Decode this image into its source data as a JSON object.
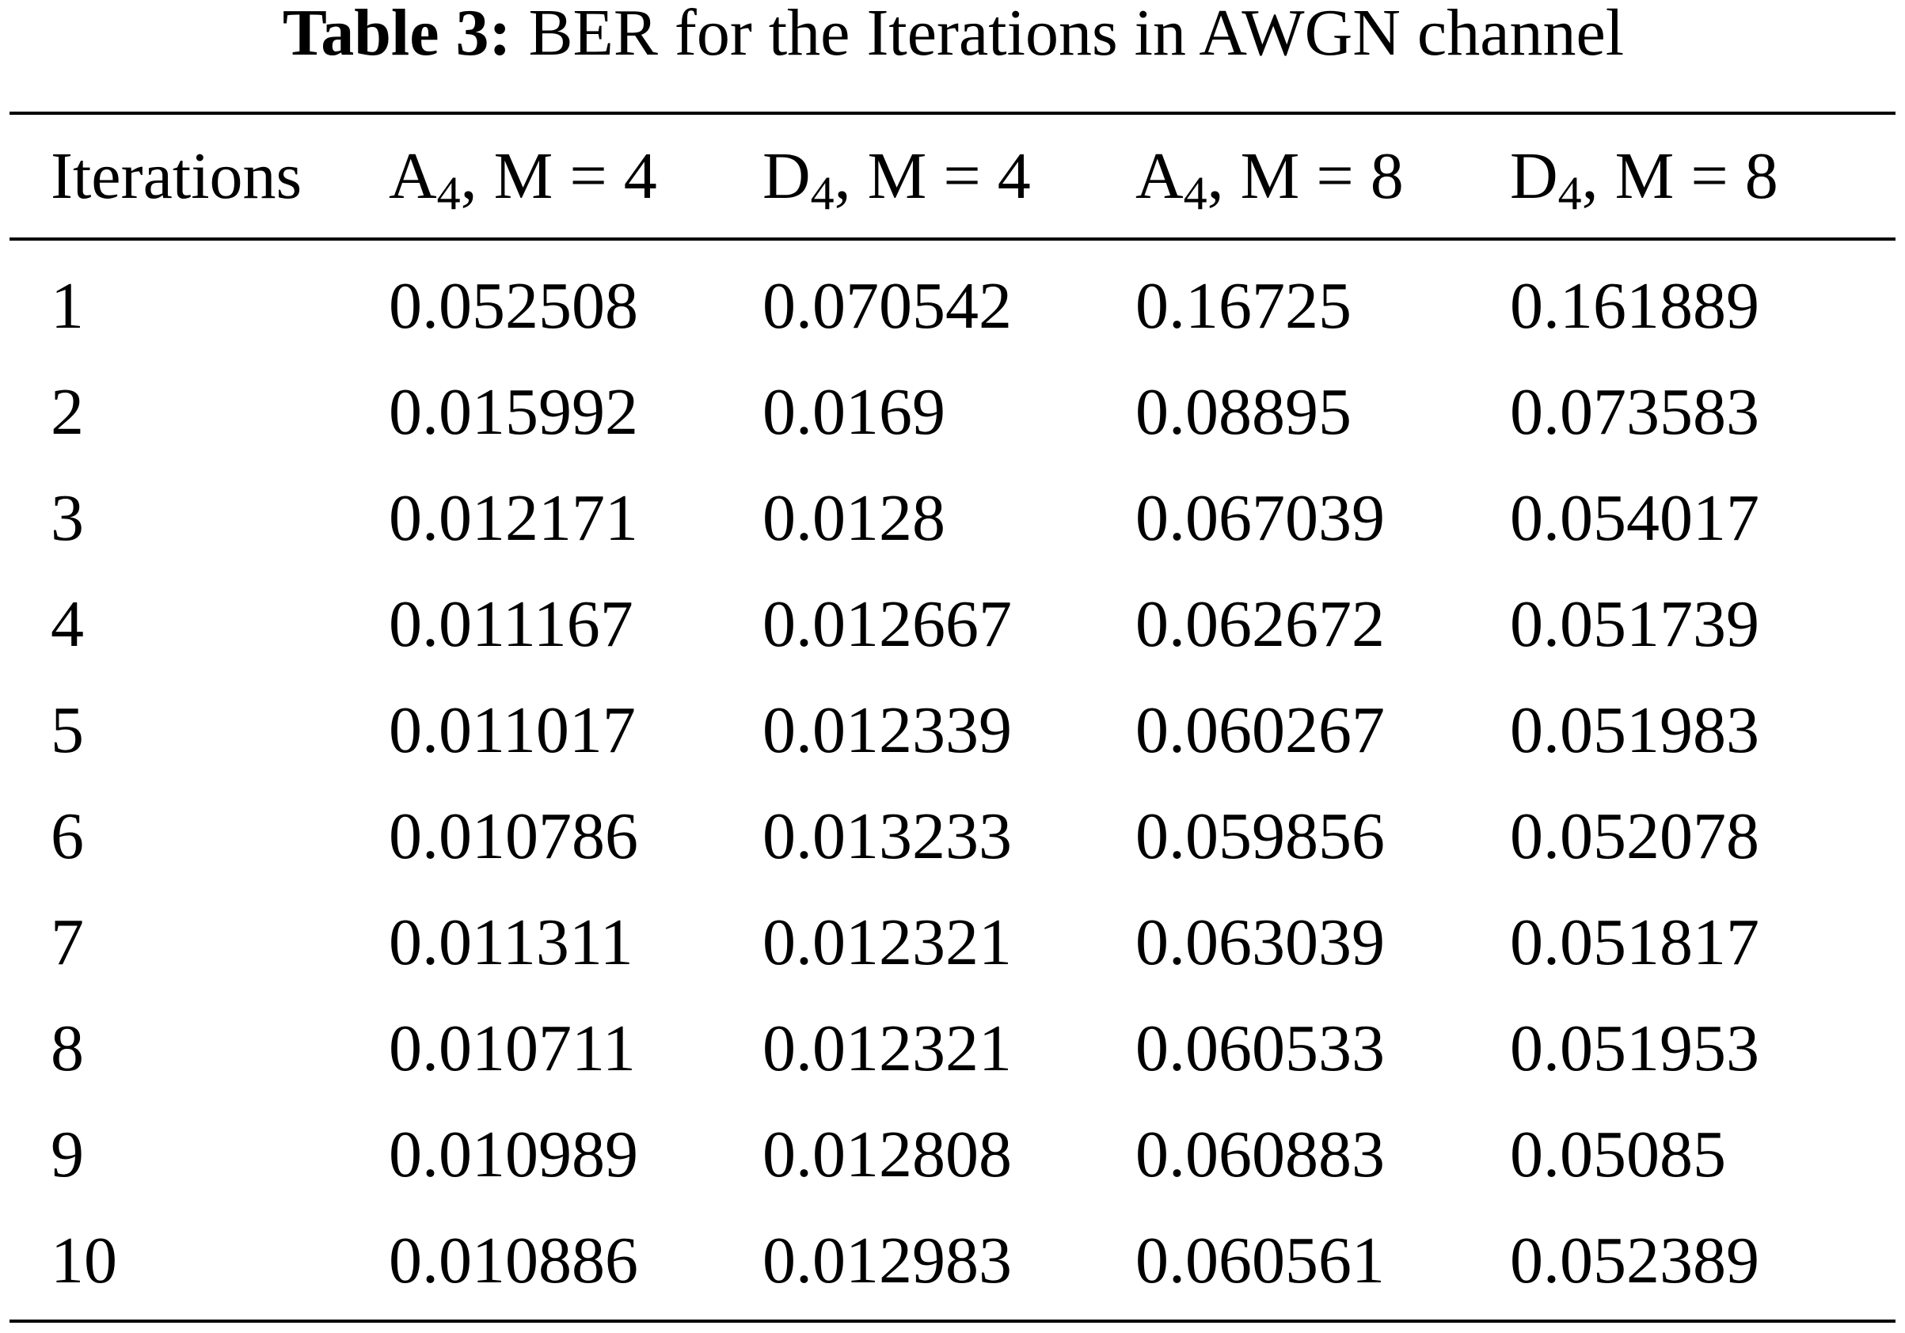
{
  "table": {
    "caption": {
      "label": "Table 3:",
      "text": "BER for the Iterations in AWGN channel"
    },
    "header": [
      {
        "text": "Iterations"
      },
      {
        "base": "A",
        "sub": "4",
        "rest": ", M = 4"
      },
      {
        "base": "D",
        "sub": "4",
        "rest": ", M = 4"
      },
      {
        "base": "A",
        "sub": "4",
        "rest": ", M = 8"
      },
      {
        "base": "D",
        "sub": "4",
        "rest": ", M = 8"
      }
    ],
    "rows": [
      [
        "1",
        "0.052508",
        "0.070542",
        "0.16725",
        "0.161889"
      ],
      [
        "2",
        "0.015992",
        "0.0169",
        "0.08895",
        "0.073583"
      ],
      [
        "3",
        "0.012171",
        "0.0128",
        "0.067039",
        "0.054017"
      ],
      [
        "4",
        "0.011167",
        "0.012667",
        "0.062672",
        "0.051739"
      ],
      [
        "5",
        "0.011017",
        "0.012339",
        "0.060267",
        "0.051983"
      ],
      [
        "6",
        "0.010786",
        "0.013233",
        "0.059856",
        "0.052078"
      ],
      [
        "7",
        "0.011311",
        "0.012321",
        "0.063039",
        "0.051817"
      ],
      [
        "8",
        "0.010711",
        "0.012321",
        "0.060533",
        "0.051953"
      ],
      [
        "9",
        "0.010989",
        "0.012808",
        "0.060883",
        "0.05085"
      ],
      [
        "10",
        "0.010886",
        "0.012983",
        "0.060561",
        "0.052389"
      ]
    ]
  }
}
